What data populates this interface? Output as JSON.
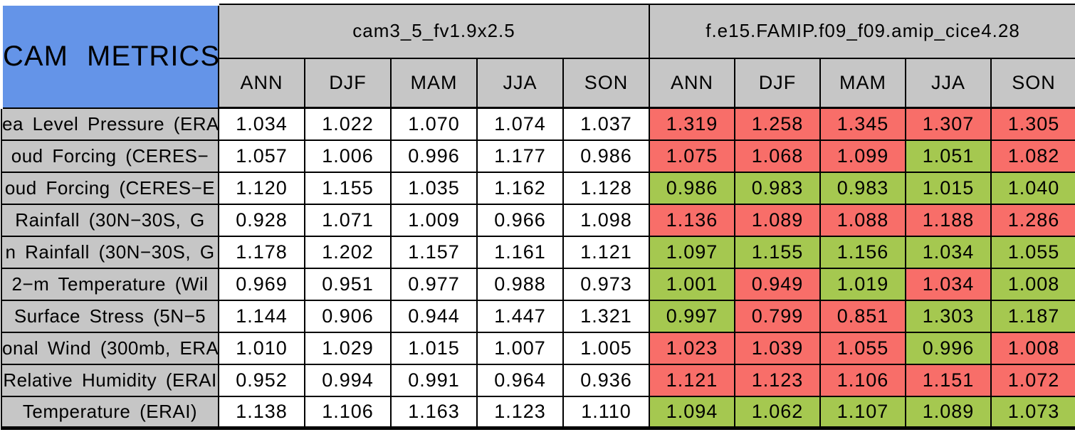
{
  "colors": {
    "header_blue": "#6494E8",
    "header_gray": "#C6C6C6",
    "cell_red": "#F86E69",
    "cell_green": "#A5C850",
    "cell_white": "#FFFFFF",
    "border_black": "#000000"
  },
  "chart_data": {
    "type": "table",
    "title": "CAM METRICS",
    "column_groups": [
      {
        "name": "cam3_5_fv1.9x2.5",
        "seasons": [
          "ANN",
          "DJF",
          "MAM",
          "JJA",
          "SON"
        ]
      },
      {
        "name": "f.e15.FAMIP.f09_f09.amip_cice4.28",
        "seasons": [
          "ANN",
          "DJF",
          "MAM",
          "JJA",
          "SON"
        ]
      }
    ],
    "rows": [
      {
        "label": "ea Level Pressure (ERA",
        "group1_values": [
          "1.034",
          "1.022",
          "1.070",
          "1.074",
          "1.037"
        ],
        "group2_values": [
          "1.319",
          "1.258",
          "1.345",
          "1.307",
          "1.305"
        ],
        "group2_cell_colors": [
          "red",
          "red",
          "red",
          "red",
          "red"
        ]
      },
      {
        "label": "oud Forcing (CERES−",
        "group1_values": [
          "1.057",
          "1.006",
          "0.996",
          "1.177",
          "0.986"
        ],
        "group2_values": [
          "1.075",
          "1.068",
          "1.099",
          "1.051",
          "1.082"
        ],
        "group2_cell_colors": [
          "red",
          "red",
          "red",
          "green",
          "red"
        ]
      },
      {
        "label": "oud Forcing (CERES−E",
        "group1_values": [
          "1.120",
          "1.155",
          "1.035",
          "1.162",
          "1.128"
        ],
        "group2_values": [
          "0.986",
          "0.983",
          "0.983",
          "1.015",
          "1.040"
        ],
        "group2_cell_colors": [
          "green",
          "green",
          "green",
          "green",
          "green"
        ]
      },
      {
        "label": "Rainfall (30N−30S, G",
        "group1_values": [
          "0.928",
          "1.071",
          "1.009",
          "0.966",
          "1.098"
        ],
        "group2_values": [
          "1.136",
          "1.089",
          "1.088",
          "1.188",
          "1.286"
        ],
        "group2_cell_colors": [
          "red",
          "red",
          "red",
          "red",
          "red"
        ]
      },
      {
        "label": "n Rainfall (30N−30S, G",
        "group1_values": [
          "1.178",
          "1.202",
          "1.157",
          "1.161",
          "1.121"
        ],
        "group2_values": [
          "1.097",
          "1.155",
          "1.156",
          "1.034",
          "1.055"
        ],
        "group2_cell_colors": [
          "green",
          "green",
          "green",
          "green",
          "green"
        ]
      },
      {
        "label": "2−m Temperature (Wil",
        "group1_values": [
          "0.969",
          "0.951",
          "0.977",
          "0.988",
          "0.973"
        ],
        "group2_values": [
          "1.001",
          "0.949",
          "1.019",
          "1.034",
          "1.008"
        ],
        "group2_cell_colors": [
          "green",
          "red",
          "green",
          "red",
          "green"
        ]
      },
      {
        "label": "Surface Stress (5N−5",
        "group1_values": [
          "1.144",
          "0.906",
          "0.944",
          "1.447",
          "1.321"
        ],
        "group2_values": [
          "0.997",
          "0.799",
          "0.851",
          "1.303",
          "1.187"
        ],
        "group2_cell_colors": [
          "green",
          "red",
          "red",
          "green",
          "green"
        ]
      },
      {
        "label": "onal Wind (300mb, ERA",
        "group1_values": [
          "1.010",
          "1.029",
          "1.015",
          "1.007",
          "1.005"
        ],
        "group2_values": [
          "1.023",
          "1.039",
          "1.055",
          "0.996",
          "1.008"
        ],
        "group2_cell_colors": [
          "red",
          "red",
          "red",
          "green",
          "red"
        ]
      },
      {
        "label": "Relative Humidity (ERAI",
        "group1_values": [
          "0.952",
          "0.994",
          "0.991",
          "0.964",
          "0.936"
        ],
        "group2_values": [
          "1.121",
          "1.123",
          "1.106",
          "1.151",
          "1.072"
        ],
        "group2_cell_colors": [
          "red",
          "red",
          "red",
          "red",
          "red"
        ]
      },
      {
        "label": "Temperature (ERAI)",
        "group1_values": [
          "1.138",
          "1.106",
          "1.163",
          "1.123",
          "1.110"
        ],
        "group2_values": [
          "1.094",
          "1.062",
          "1.107",
          "1.089",
          "1.073"
        ],
        "group2_cell_colors": [
          "green",
          "green",
          "green",
          "green",
          "green"
        ]
      }
    ]
  }
}
